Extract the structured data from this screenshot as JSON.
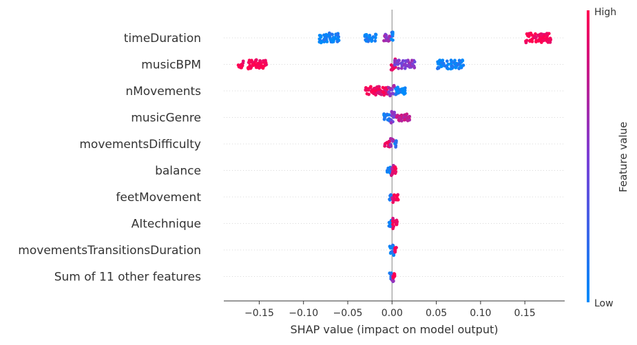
{
  "chart_data": {
    "type": "scatter",
    "subtype": "shap-beeswarm",
    "xlabel": "SHAP value (impact on model output)",
    "xlim": [
      -0.19,
      0.195
    ],
    "xticks": [
      -0.15,
      -0.1,
      -0.05,
      0.0,
      0.05,
      0.1,
      0.15
    ],
    "xtick_labels": [
      "−0.15",
      "−0.10",
      "−0.05",
      "0.00",
      "0.05",
      "0.10",
      "0.15"
    ],
    "grid": false,
    "colorbar": {
      "label": "Feature value",
      "high_label": "High",
      "low_label": "Low",
      "low_color": "#008bfb",
      "mid_color": "#7b3fd6",
      "high_color": "#ff0051"
    },
    "features": [
      {
        "name": "timeDuration",
        "clusters": [
          {
            "from": -0.082,
            "to": -0.059,
            "value": 0.05,
            "spread": 1.0
          },
          {
            "from": -0.031,
            "to": -0.018,
            "value": 0.05,
            "spread": 0.6
          },
          {
            "from": -0.01,
            "to": -0.002,
            "value": 0.6,
            "spread": 0.5
          },
          {
            "from": -0.001,
            "to": 0.001,
            "value": 0.1,
            "spread": 1.3
          },
          {
            "from": 0.151,
            "to": 0.18,
            "value": 1.0,
            "spread": 1.0
          }
        ]
      },
      {
        "name": "musicBPM",
        "clusters": [
          {
            "from": -0.175,
            "to": -0.168,
            "value": 1.0,
            "spread": 0.5
          },
          {
            "from": -0.163,
            "to": -0.142,
            "value": 1.0,
            "spread": 0.9
          },
          {
            "from": -0.001,
            "to": 0.004,
            "value": 0.85,
            "spread": 1.4
          },
          {
            "from": 0.003,
            "to": 0.026,
            "value": 0.55,
            "spread": 0.8
          },
          {
            "from": 0.051,
            "to": 0.081,
            "value": 0.05,
            "spread": 0.9
          }
        ]
      },
      {
        "name": "nMovements",
        "clusters": [
          {
            "from": -0.03,
            "to": -0.004,
            "value": 0.95,
            "spread": 0.8
          },
          {
            "from": -0.004,
            "to": 0.003,
            "value": 0.6,
            "spread": 1.3
          },
          {
            "from": 0.004,
            "to": 0.015,
            "value": 0.05,
            "spread": 0.6
          }
        ]
      },
      {
        "name": "musicGenre",
        "clusters": [
          {
            "from": -0.01,
            "to": -0.002,
            "value": 0.1,
            "spread": 0.6
          },
          {
            "from": -0.002,
            "to": 0.004,
            "value": 0.5,
            "spread": 1.4
          },
          {
            "from": 0.005,
            "to": 0.02,
            "value": 0.75,
            "spread": 0.6
          }
        ]
      },
      {
        "name": "movementsDifficulty",
        "clusters": [
          {
            "from": -0.009,
            "to": -0.002,
            "value": 0.9,
            "spread": 0.5
          },
          {
            "from": -0.002,
            "to": 0.002,
            "value": 0.6,
            "spread": 1.3
          },
          {
            "from": 0.002,
            "to": 0.005,
            "value": 0.1,
            "spread": 0.4
          }
        ]
      },
      {
        "name": "balance",
        "clusters": [
          {
            "from": -0.006,
            "to": -0.001,
            "value": 0.1,
            "spread": 0.5
          },
          {
            "from": -0.001,
            "to": 0.002,
            "value": 0.8,
            "spread": 1.3
          },
          {
            "from": 0.002,
            "to": 0.005,
            "value": 1.0,
            "spread": 0.6
          }
        ]
      },
      {
        "name": "feetMovement",
        "clusters": [
          {
            "from": -0.003,
            "to": 0.0,
            "value": 0.1,
            "spread": 0.5
          },
          {
            "from": 0.0,
            "to": 0.002,
            "value": 0.85,
            "spread": 1.3
          },
          {
            "from": 0.002,
            "to": 0.007,
            "value": 1.0,
            "spread": 0.5
          }
        ]
      },
      {
        "name": "AItechnique",
        "clusters": [
          {
            "from": -0.004,
            "to": 0.0,
            "value": 0.1,
            "spread": 0.5
          },
          {
            "from": 0.0,
            "to": 0.002,
            "value": 0.9,
            "spread": 1.3
          },
          {
            "from": 0.002,
            "to": 0.006,
            "value": 1.0,
            "spread": 0.6
          }
        ]
      },
      {
        "name": "movementsTransitionsDuration",
        "clusters": [
          {
            "from": -0.003,
            "to": 0.0,
            "value": 0.05,
            "spread": 0.6
          },
          {
            "from": 0.0,
            "to": 0.002,
            "value": 0.15,
            "spread": 1.3
          },
          {
            "from": 0.003,
            "to": 0.005,
            "value": 1.0,
            "spread": 0.3
          }
        ]
      },
      {
        "name": "Sum of 11 other features",
        "clusters": [
          {
            "from": -0.003,
            "to": 0.0,
            "value": 0.1,
            "spread": 0.5
          },
          {
            "from": 0.0,
            "to": 0.002,
            "value": 0.5,
            "spread": 1.3
          },
          {
            "from": 0.001,
            "to": 0.003,
            "value": 1.0,
            "spread": 0.5
          }
        ]
      }
    ]
  }
}
